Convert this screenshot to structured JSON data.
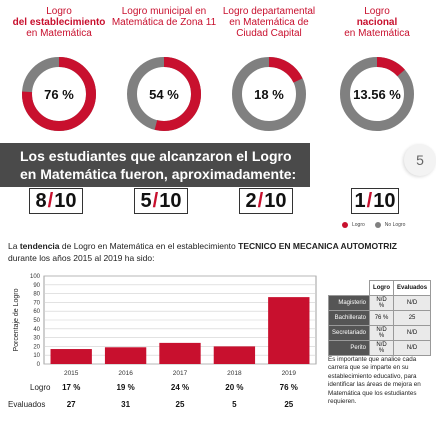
{
  "donuts": [
    {
      "title_pre": "Logro",
      "title_bold": "del establecimiento",
      "title_post": "en Matemática",
      "label": "76 %",
      "percent": 76,
      "fraction_num": "8",
      "fraction_den": "10"
    },
    {
      "title_pre": "Logro municipal en",
      "title_bold": "",
      "title_post": "Matemática de Zona 11",
      "label": "54 %",
      "percent": 54,
      "fraction_num": "5",
      "fraction_den": "10"
    },
    {
      "title_pre": "Logro departamental",
      "title_bold": "",
      "title_post": "en Matemática de Ciudad Capital",
      "label": "18 %",
      "percent": 18,
      "fraction_num": "2",
      "fraction_den": "10"
    },
    {
      "title_pre": "Logro",
      "title_bold": "nacional",
      "title_post": "en Matemática",
      "label": "13.56 %",
      "percent": 13.56,
      "fraction_num": "1",
      "fraction_den": "10"
    }
  ],
  "banner": {
    "line1": "Los estudiantes que alcanzaron el Logro",
    "line2": "en Matemática fueron, aproximadamente:"
  },
  "legend": {
    "logro": "Logro",
    "no_logro": "No Logro"
  },
  "colors": {
    "accent": "#c8102e",
    "gray": "#808080",
    "dark": "#4a4a4a"
  },
  "page_number": "5",
  "paragraph": {
    "pre": "La ",
    "bold1": "tendencia",
    "mid": " de Logro en Matemática en el establecimiento ",
    "bold2": "TECNICO EN MECANICA AUTOMOTRIZ",
    "post": " durante los años 2015 al 2019 ha sido:"
  },
  "chart_data": {
    "type": "bar",
    "categories": [
      "2015",
      "2016",
      "2017",
      "2018",
      "2019"
    ],
    "values": [
      17,
      19,
      24,
      20,
      76
    ],
    "ylabel": "Porcentaje de Logro",
    "ylim": [
      0,
      100
    ],
    "yticks": [
      "0",
      "10",
      "20",
      "30",
      "40",
      "50",
      "60",
      "70",
      "80",
      "90",
      "100"
    ],
    "grid": true,
    "rows": [
      {
        "label": "Logro",
        "values": [
          "17 %",
          "19 %",
          "24 %",
          "20 %",
          "76 %"
        ]
      },
      {
        "label": "Evaluados",
        "values": [
          "27",
          "31",
          "25",
          "5",
          "25"
        ]
      }
    ]
  },
  "mini_table": {
    "headers": [
      "",
      "Logro",
      "Evaluados"
    ],
    "rows": [
      {
        "label": "Magisterio",
        "logro": "N/D %",
        "evaluados": "N/D"
      },
      {
        "label": "Bachillerato",
        "logro": "76 %",
        "evaluados": "25"
      },
      {
        "label": "Secretariado",
        "logro": "N/D %",
        "evaluados": "N/D"
      },
      {
        "label": "Perito",
        "logro": "N/D %",
        "evaluados": "N/D"
      }
    ]
  },
  "note": "Es importante que analice cada carrera que se imparte en su establecimiento educativo, para identificar las áreas de mejora en Matemática que los estudiantes requieren."
}
